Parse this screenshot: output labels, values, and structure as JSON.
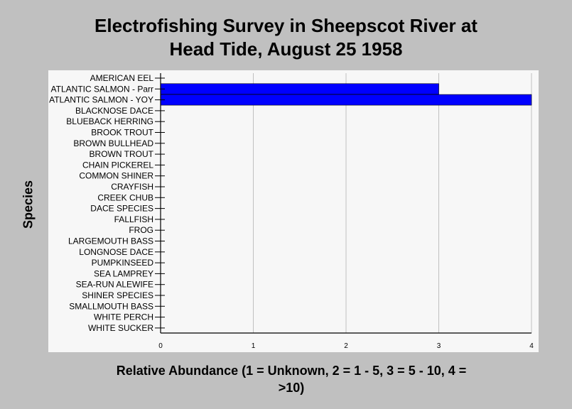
{
  "chart_data": {
    "type": "bar",
    "orientation": "horizontal",
    "title_lines": [
      "Electrofishing Survey in Sheepscot River at",
      "Head Tide, August 25 1958"
    ],
    "xlabel_lines": [
      "Relative Abundance (1 = Unknown, 2 = 1 - 5, 3 = 5 - 10, 4 =",
      ">10)"
    ],
    "ylabel": "Species",
    "categories": [
      "AMERICAN EEL",
      "ATLANTIC SALMON - Parr",
      "ATLANTIC SALMON - YOY",
      "BLACKNOSE DACE",
      "BLUEBACK HERRING",
      "BROOK TROUT",
      "BROWN BULLHEAD",
      "BROWN TROUT",
      "CHAIN PICKEREL",
      "COMMON SHINER",
      "CRAYFISH",
      "CREEK CHUB",
      "DACE SPECIES",
      "FALLFISH",
      "FROG",
      "LARGEMOUTH BASS",
      "LONGNOSE DACE",
      "PUMPKINSEED",
      "SEA LAMPREY",
      "SEA-RUN ALEWIFE",
      "SHINER SPECIES",
      "SMALLMOUTH BASS",
      "WHITE PERCH",
      "WHITE SUCKER"
    ],
    "values": [
      0,
      3,
      4,
      0,
      0,
      0,
      0,
      0,
      0,
      0,
      0,
      0,
      0,
      0,
      0,
      0,
      0,
      0,
      0,
      0,
      0,
      0,
      0,
      0
    ],
    "xlim": [
      0,
      4
    ],
    "xticks": [
      0,
      1,
      2,
      3,
      4
    ],
    "grid": "vertical",
    "colors": {
      "bar": "#0000ff",
      "plot_background": "#f7f7f7",
      "page_background": "#c0c0c0",
      "grid": "#c0c0c0"
    }
  }
}
